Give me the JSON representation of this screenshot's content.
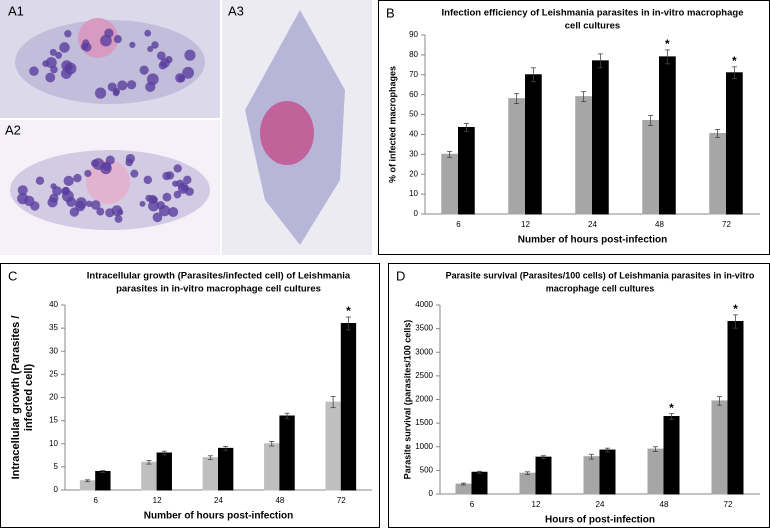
{
  "image_labels": [
    "A1",
    "A2",
    "A3"
  ],
  "chart_data": [
    {
      "type": "bar",
      "panel_label": "B",
      "title": [
        "Infection efficiency of Leishmania parasites in in-vitro macrophage",
        "cell cultures"
      ],
      "ylabel": [
        "% of infected macrophages"
      ],
      "xlabel": "Number of hours post-infection",
      "categories": [
        "6",
        "12",
        "24",
        "48",
        "72"
      ],
      "series": [
        {
          "color": "#a6a6a6",
          "values": [
            30,
            58,
            59,
            47,
            40.5
          ],
          "errors": [
            1.5,
            2.5,
            2.5,
            2.5,
            2
          ],
          "markers": [
            null,
            null,
            null,
            null,
            null
          ]
        },
        {
          "color": "#000000",
          "values": [
            43.5,
            70,
            77,
            79,
            71
          ],
          "errors": [
            2,
            3.5,
            3.5,
            3.5,
            3
          ],
          "markers": [
            null,
            null,
            null,
            "*",
            "*"
          ]
        }
      ],
      "ylim": [
        0,
        90
      ],
      "yticks": [
        0,
        10,
        20,
        30,
        40,
        50,
        60,
        70,
        80,
        90
      ]
    },
    {
      "type": "bar",
      "panel_label": "C",
      "title": [
        "Intracellular growth (Parasites/infected cell) of Leishmania",
        "parasites in in-vitro macrophage cell cultures"
      ],
      "ylabel": [
        "Intracellular growth (Parasites /",
        "infected cell)"
      ],
      "xlabel": "Number of hours post-infection",
      "categories": [
        "6",
        "12",
        "24",
        "48",
        "72"
      ],
      "series": [
        {
          "color": "#bfbfbf",
          "values": [
            2,
            6,
            7,
            10,
            19
          ],
          "errors": [
            0.2,
            0.4,
            0.4,
            0.5,
            1.2
          ],
          "markers": [
            null,
            null,
            null,
            null,
            null
          ]
        },
        {
          "color": "#000000",
          "values": [
            4,
            8,
            9,
            16,
            36
          ],
          "errors": [
            0.2,
            0.4,
            0.4,
            0.6,
            1.4
          ],
          "markers": [
            null,
            null,
            null,
            null,
            "*"
          ]
        }
      ],
      "ylim": [
        0,
        40
      ],
      "yticks": [
        0,
        5,
        10,
        15,
        20,
        25,
        30,
        35,
        40
      ]
    },
    {
      "type": "bar",
      "panel_label": "D",
      "title": [
        "Parasite survival (Parasites/100 cells) of Leishmania parasites in in-vitro",
        "macrophage cell cultures"
      ],
      "ylabel": [
        "Parasite survival (parasites/100 cells)"
      ],
      "xlabel": "Hours of post-infection",
      "categories": [
        "6",
        "12",
        "24",
        "48",
        "72"
      ],
      "series": [
        {
          "color": "#a6a6a6",
          "values": [
            210,
            440,
            790,
            950,
            1970
          ],
          "errors": [
            20,
            30,
            50,
            50,
            90
          ],
          "markers": [
            null,
            null,
            null,
            null,
            null
          ]
        },
        {
          "color": "#000000",
          "values": [
            460,
            780,
            930,
            1640,
            3650
          ],
          "errors": [
            20,
            30,
            40,
            60,
            140
          ],
          "markers": [
            null,
            null,
            null,
            "*",
            "*"
          ]
        }
      ],
      "ylim": [
        0,
        4000
      ],
      "yticks": [
        0,
        500,
        1000,
        1500,
        2000,
        2500,
        3000,
        3500,
        4000
      ]
    }
  ]
}
